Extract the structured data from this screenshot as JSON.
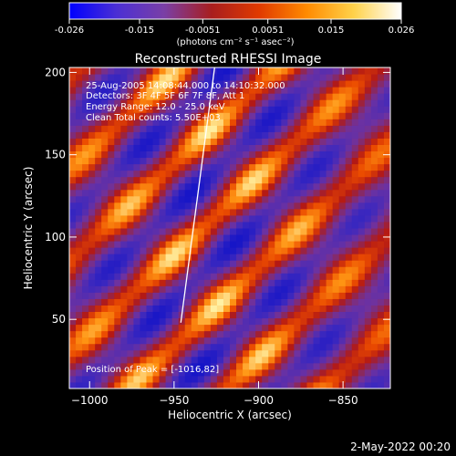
{
  "chart_data": {
    "type": "heatmap",
    "title": "Reconstructed RHESSI Image",
    "xlabel": "Heliocentric X (arcsec)",
    "ylabel": "Heliocentric Y (arcsec)",
    "xlim": [
      -1012,
      -822
    ],
    "ylim": [
      8,
      203
    ],
    "x_ticks": [
      -1000,
      -950,
      -900,
      -850
    ],
    "y_ticks": [
      50,
      100,
      150,
      200
    ],
    "colorbar": {
      "range": [
        -0.026,
        0.026
      ],
      "ticks": [
        "-0.026",
        "-0.015",
        "-0.0051",
        "0.0051",
        "0.015",
        "0.026"
      ],
      "tick_values": [
        -0.026,
        -0.015,
        -0.0051,
        0.0051,
        0.015,
        0.026
      ],
      "unit_label": "(photons cm⁻² s⁻¹ asec⁻²)",
      "colors": [
        "#0000ff",
        "#4b2fd4",
        "#7a3fa6",
        "#a81e1e",
        "#e03a00",
        "#ff8a00",
        "#ffd24a",
        "#ffffff"
      ]
    },
    "annotations": [
      "25-Aug-2005 14:08:44.000 to 14:10:32.000",
      "Detectors: 3F 4F 5F 6F 7F 8F, Att 1",
      "Energy Range: 12.0 - 25.0 keV",
      "Clean     Total counts: 5.50E+03",
      "Position of Peak = [-1016,82]"
    ],
    "limb_line": [
      [
        -946,
        48
      ],
      [
        -926,
        205
      ]
    ],
    "grid": false
  },
  "footer_date": "2-May-2022 00:20"
}
